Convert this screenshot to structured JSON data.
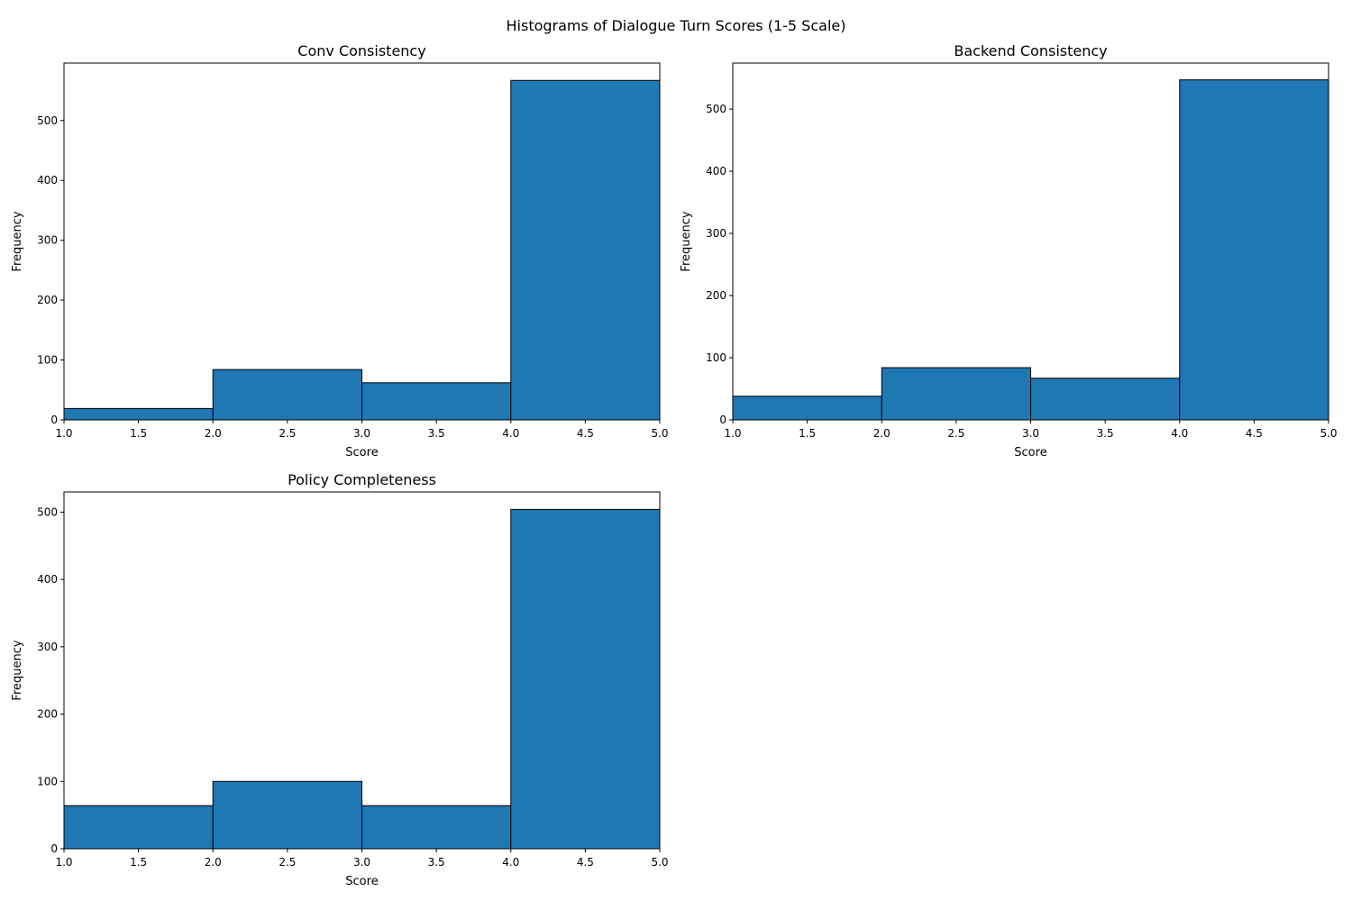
{
  "figure": {
    "suptitle": "Histograms of Dialogue Turn Scores (1-5 Scale)",
    "bar_color": "#1f77b4",
    "edge_color": "#000000"
  },
  "chart_data": [
    {
      "type": "bar",
      "title": "Conv Consistency",
      "xlabel": "Score",
      "ylabel": "Frequency",
      "bins": [
        [
          1,
          2
        ],
        [
          2,
          3
        ],
        [
          3,
          4
        ],
        [
          4,
          5
        ]
      ],
      "values": [
        19,
        84,
        62,
        567
      ],
      "xlim": [
        1.0,
        5.0
      ],
      "ylim": [
        0,
        596
      ],
      "xticks": [
        "1.0",
        "1.5",
        "2.0",
        "2.5",
        "3.0",
        "3.5",
        "4.0",
        "4.5",
        "5.0"
      ],
      "yticks": [
        0,
        100,
        200,
        300,
        400,
        500
      ]
    },
    {
      "type": "bar",
      "title": "Backend Consistency",
      "xlabel": "Score",
      "ylabel": "Frequency",
      "bins": [
        [
          1,
          2
        ],
        [
          2,
          3
        ],
        [
          3,
          4
        ],
        [
          4,
          5
        ]
      ],
      "values": [
        38,
        84,
        67,
        547
      ],
      "xlim": [
        1.0,
        5.0
      ],
      "ylim": [
        0,
        574
      ],
      "xticks": [
        "1.0",
        "1.5",
        "2.0",
        "2.5",
        "3.0",
        "3.5",
        "4.0",
        "4.5",
        "5.0"
      ],
      "yticks": [
        0,
        100,
        200,
        300,
        400,
        500
      ]
    },
    {
      "type": "bar",
      "title": "Policy Completeness",
      "xlabel": "Score",
      "ylabel": "Frequency",
      "bins": [
        [
          1,
          2
        ],
        [
          2,
          3
        ],
        [
          3,
          4
        ],
        [
          4,
          5
        ]
      ],
      "values": [
        64,
        100,
        64,
        504
      ],
      "xlim": [
        1.0,
        5.0
      ],
      "ylim": [
        0,
        530
      ],
      "xticks": [
        "1.0",
        "1.5",
        "2.0",
        "2.5",
        "3.0",
        "3.5",
        "4.0",
        "4.5",
        "5.0"
      ],
      "yticks": [
        0,
        100,
        200,
        300,
        400,
        500
      ]
    }
  ]
}
